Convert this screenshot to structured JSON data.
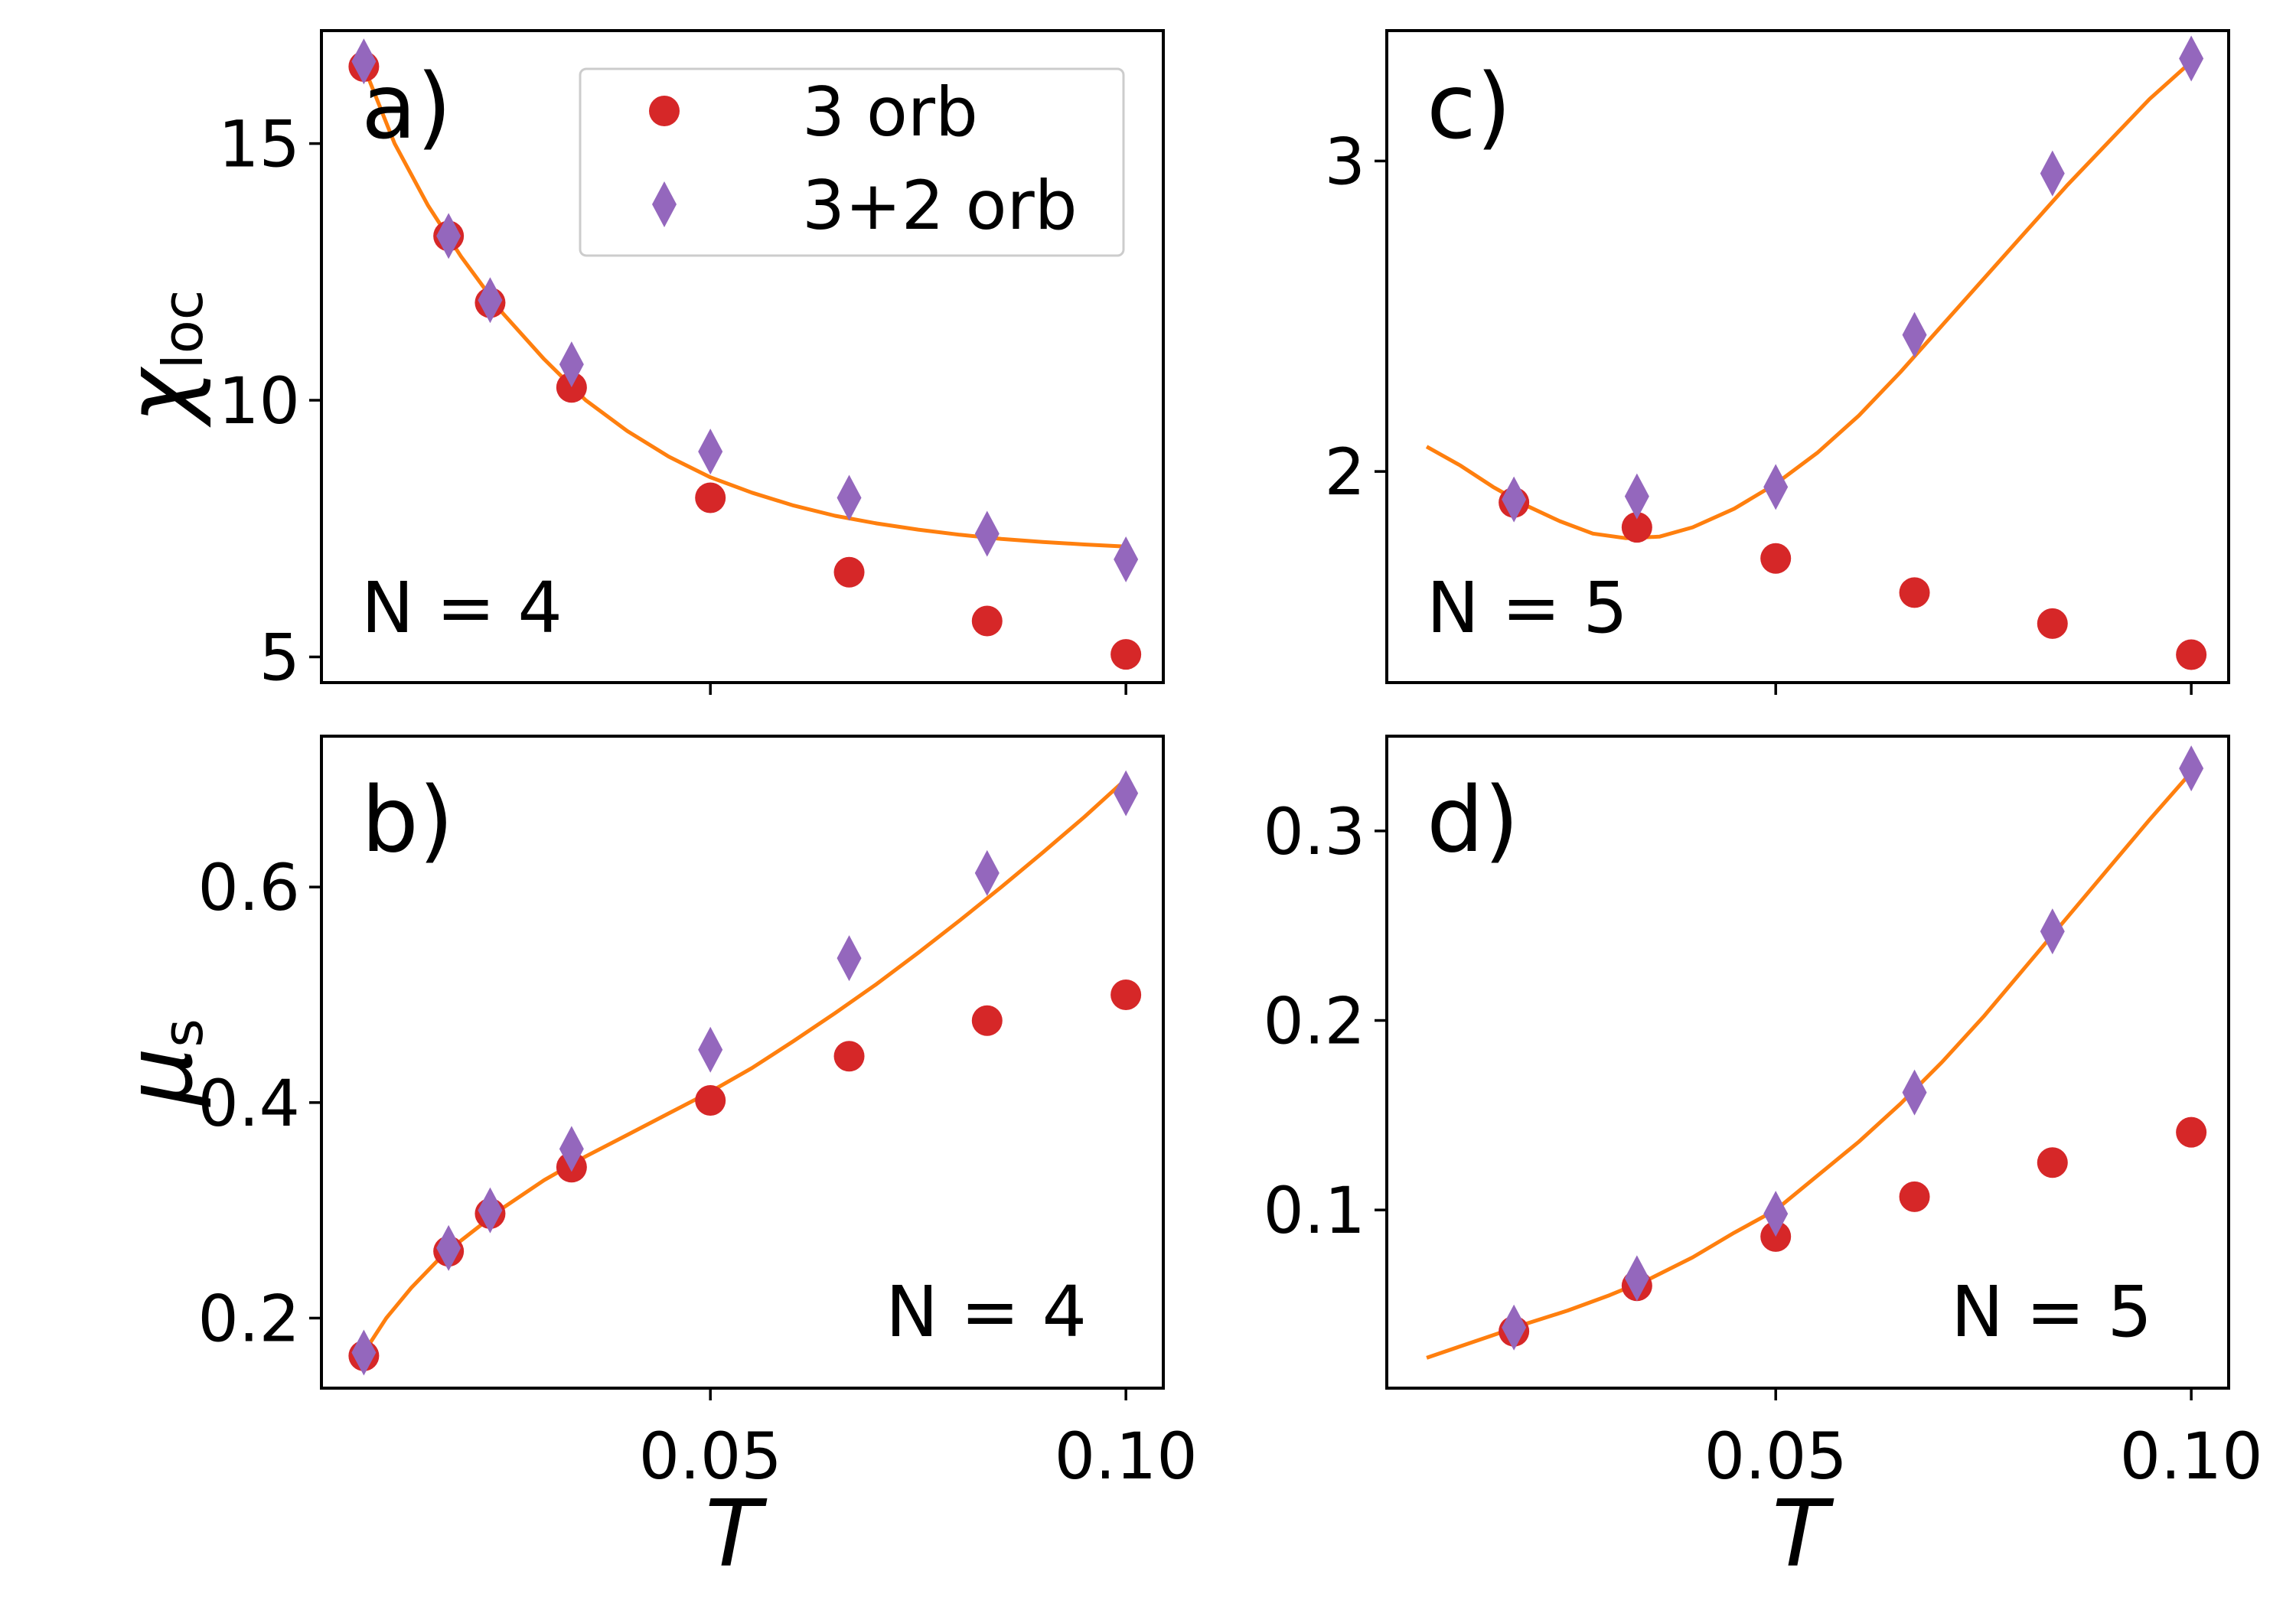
{
  "figure": {
    "x_axis_label": "T",
    "legend": {
      "placement": "top-right of panel a",
      "entries": [
        {
          "name": "3 orb",
          "marker": "circle",
          "color": "#d62728"
        },
        {
          "name": "3+2 orb",
          "marker": "diamond",
          "color": "#9467bd"
        }
      ]
    },
    "fit_color": "#ff7f0e"
  },
  "chart_data": [
    {
      "id": "a",
      "type": "scatter",
      "panel_label": "a)",
      "annotation": "N = 4",
      "annotation_placement": "bottom-left",
      "ylabel_main": "χ",
      "ylabel_sub": "loc",
      "xlim": [
        0.0032,
        0.1045
      ],
      "ylim": [
        4.5,
        17.2
      ],
      "xticks": [
        0.05,
        0.1
      ],
      "yticks": [
        5,
        10,
        15
      ],
      "ytick_labels": [
        "5",
        "10",
        "15"
      ],
      "x": [
        0.0083,
        0.0185,
        0.0235,
        0.0333,
        0.05,
        0.0667,
        0.0833,
        0.1
      ],
      "series": [
        {
          "name": "3 orb",
          "values": [
            16.5,
            13.2,
            11.9,
            10.25,
            8.1,
            6.65,
            5.7,
            5.05
          ]
        },
        {
          "name": "3+2 orb",
          "values": [
            16.6,
            13.2,
            11.95,
            10.7,
            9.0,
            8.1,
            7.4,
            6.9
          ]
        }
      ],
      "fit": {
        "x": [
          0.0083,
          0.012,
          0.016,
          0.02,
          0.025,
          0.03,
          0.035,
          0.04,
          0.045,
          0.05,
          0.055,
          0.06,
          0.065,
          0.07,
          0.075,
          0.08,
          0.085,
          0.09,
          0.095,
          0.1
        ],
        "y": [
          16.5,
          15.0,
          13.8,
          12.8,
          11.7,
          10.8,
          10.0,
          9.4,
          8.9,
          8.5,
          8.2,
          7.95,
          7.75,
          7.6,
          7.48,
          7.38,
          7.3,
          7.24,
          7.19,
          7.15
        ]
      }
    },
    {
      "id": "b",
      "type": "scatter",
      "panel_label": "b)",
      "annotation": "N = 4",
      "annotation_placement": "bottom-right",
      "ylabel_main": "μ",
      "ylabel_sub": "s",
      "xlim": [
        0.0032,
        0.1045
      ],
      "ylim": [
        0.135,
        0.74
      ],
      "xticks": [
        0.05,
        0.1
      ],
      "xtick_labels": [
        "0.05",
        "0.10"
      ],
      "yticks": [
        0.2,
        0.4,
        0.6
      ],
      "ytick_labels": [
        "0.2",
        "0.4",
        "0.6"
      ],
      "x": [
        0.0083,
        0.0185,
        0.0235,
        0.0333,
        0.05,
        0.0667,
        0.0833,
        0.1
      ],
      "series": [
        {
          "name": "3 orb",
          "values": [
            0.165,
            0.262,
            0.297,
            0.34,
            0.402,
            0.443,
            0.476,
            0.5
          ]
        },
        {
          "name": "3+2 orb",
          "values": [
            0.168,
            0.265,
            0.3,
            0.357,
            0.449,
            0.534,
            0.613,
            0.687
          ]
        }
      ],
      "fit": {
        "x": [
          0.0083,
          0.011,
          0.014,
          0.017,
          0.02,
          0.025,
          0.03,
          0.035,
          0.04,
          0.045,
          0.05,
          0.055,
          0.06,
          0.065,
          0.07,
          0.075,
          0.08,
          0.085,
          0.09,
          0.095,
          0.1
        ],
        "y": [
          0.168,
          0.2,
          0.228,
          0.252,
          0.272,
          0.302,
          0.328,
          0.35,
          0.37,
          0.39,
          0.41,
          0.432,
          0.457,
          0.483,
          0.51,
          0.539,
          0.569,
          0.6,
          0.632,
          0.665,
          0.7
        ]
      }
    },
    {
      "id": "c",
      "type": "scatter",
      "panel_label": "c)",
      "annotation": "N = 5",
      "annotation_placement": "bottom-left",
      "xlim": [
        0.0032,
        0.1045
      ],
      "ylim": [
        1.32,
        3.42
      ],
      "xticks": [
        0.05,
        0.1
      ],
      "yticks": [
        2,
        3
      ],
      "ytick_labels": [
        "2",
        "3"
      ],
      "x": [
        0.0185,
        0.0333,
        0.05,
        0.0667,
        0.0833,
        0.1
      ],
      "series": [
        {
          "name": "3 orb",
          "values": [
            1.9,
            1.82,
            1.72,
            1.61,
            1.51,
            1.41
          ]
        },
        {
          "name": "3+2 orb",
          "values": [
            1.91,
            1.92,
            1.95,
            2.44,
            2.96,
            3.33
          ]
        }
      ],
      "fit": {
        "x": [
          0.008,
          0.012,
          0.016,
          0.02,
          0.024,
          0.028,
          0.032,
          0.036,
          0.04,
          0.045,
          0.05,
          0.055,
          0.06,
          0.065,
          0.07,
          0.075,
          0.08,
          0.085,
          0.09,
          0.095,
          0.1
        ],
        "y": [
          2.08,
          2.02,
          1.95,
          1.89,
          1.84,
          1.8,
          1.785,
          1.79,
          1.82,
          1.88,
          1.96,
          2.06,
          2.18,
          2.32,
          2.47,
          2.62,
          2.77,
          2.92,
          3.06,
          3.2,
          3.32
        ]
      }
    },
    {
      "id": "d",
      "type": "scatter",
      "panel_label": "d)",
      "annotation": "N = 5",
      "annotation_placement": "bottom-right",
      "xlim": [
        0.0032,
        0.1045
      ],
      "ylim": [
        0.006,
        0.35
      ],
      "xticks": [
        0.05,
        0.1
      ],
      "xtick_labels": [
        "0.05",
        "0.10"
      ],
      "yticks": [
        0.1,
        0.2,
        0.3
      ],
      "ytick_labels": [
        "0.1",
        "0.2",
        "0.3"
      ],
      "x": [
        0.0185,
        0.0333,
        0.05,
        0.0667,
        0.0833,
        0.1
      ],
      "series": [
        {
          "name": "3 orb",
          "values": [
            0.036,
            0.06,
            0.086,
            0.107,
            0.125,
            0.141
          ]
        },
        {
          "name": "3+2 orb",
          "values": [
            0.038,
            0.064,
            0.098,
            0.162,
            0.247,
            0.333
          ]
        }
      ],
      "fit": {
        "x": [
          0.008,
          0.012,
          0.016,
          0.02,
          0.025,
          0.03,
          0.035,
          0.04,
          0.045,
          0.05,
          0.055,
          0.06,
          0.065,
          0.07,
          0.075,
          0.08,
          0.085,
          0.09,
          0.095,
          0.1
        ],
        "y": [
          0.022,
          0.028,
          0.034,
          0.04,
          0.047,
          0.055,
          0.064,
          0.075,
          0.088,
          0.1,
          0.118,
          0.136,
          0.156,
          0.178,
          0.202,
          0.228,
          0.254,
          0.28,
          0.306,
          0.331
        ]
      }
    }
  ]
}
